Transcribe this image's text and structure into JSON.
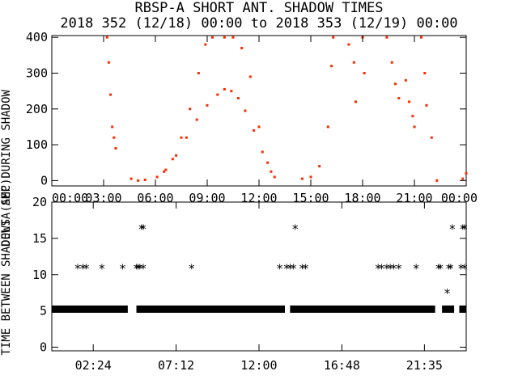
{
  "chart_data": [
    {
      "type": "scatter",
      "title_line1": "RBSP-A SHORT ANT. SHADOW TIMES",
      "title_line2": "2018 352 (12/18) 00:00 to 2018 353 (12/19) 00:00",
      "ylabel": "DELTA AMP DURING SHADOW",
      "xlim": [
        0,
        24
      ],
      "ylim": [
        -15,
        405
      ],
      "y_ticks": [
        "0",
        "100",
        "200",
        "300",
        "400"
      ],
      "y_tick_values": [
        0,
        100,
        200,
        300,
        400
      ],
      "x_ticks": [
        "00:00",
        "03:00",
        "06:00",
        "09:00",
        "12:00",
        "15:00",
        "18:00",
        "21:00",
        "00:00"
      ],
      "x_tick_values": [
        0,
        3,
        6,
        9,
        12,
        15,
        18,
        21,
        24
      ],
      "marker_color": "#ff2a00",
      "series": [
        {
          "points": [
            [
              3.2,
              400
            ],
            [
              3.3,
              330
            ],
            [
              3.4,
              240
            ],
            [
              3.5,
              150
            ],
            [
              3.6,
              120
            ],
            [
              3.7,
              90
            ],
            [
              4.6,
              5
            ],
            [
              5.0,
              0
            ],
            [
              5.4,
              2
            ],
            [
              6.1,
              10
            ],
            [
              6.5,
              25
            ],
            [
              7.0,
              60
            ],
            [
              7.5,
              120
            ],
            [
              8.0,
              200
            ],
            [
              8.5,
              300
            ],
            [
              8.9,
              380
            ],
            [
              9.3,
              400
            ],
            [
              10.0,
              400
            ],
            [
              10.5,
              400
            ],
            [
              11.0,
              370
            ],
            [
              11.5,
              290
            ],
            [
              12.0,
              150
            ],
            [
              12.5,
              50
            ],
            [
              12.9,
              10
            ],
            [
              6.6,
              30
            ],
            [
              7.2,
              70
            ],
            [
              7.8,
              120
            ],
            [
              8.4,
              170
            ],
            [
              9.0,
              210
            ],
            [
              9.6,
              240
            ],
            [
              10.0,
              255
            ],
            [
              10.4,
              250
            ],
            [
              10.8,
              230
            ],
            [
              11.2,
              195
            ],
            [
              11.7,
              140
            ],
            [
              12.2,
              80
            ],
            [
              12.7,
              25
            ],
            [
              14.5,
              5
            ],
            [
              15.0,
              10
            ],
            [
              15.5,
              40
            ],
            [
              16.0,
              150
            ],
            [
              16.2,
              320
            ],
            [
              16.3,
              400
            ],
            [
              17.2,
              380
            ],
            [
              17.5,
              330
            ],
            [
              17.6,
              220
            ],
            [
              18.0,
              400
            ],
            [
              18.1,
              300
            ],
            [
              19.4,
              400
            ],
            [
              19.7,
              330
            ],
            [
              19.9,
              270
            ],
            [
              20.1,
              230
            ],
            [
              20.5,
              280
            ],
            [
              20.7,
              220
            ],
            [
              20.9,
              180
            ],
            [
              21.0,
              150
            ],
            [
              21.4,
              400
            ],
            [
              21.6,
              300
            ],
            [
              21.7,
              210
            ],
            [
              22.0,
              120
            ],
            [
              22.3,
              0
            ],
            [
              23.8,
              5
            ],
            [
              24.0,
              20
            ]
          ]
        }
      ]
    },
    {
      "type": "scatter",
      "ylabel": "TIME BETWEEN SHADOWS (SEC)",
      "xlim": [
        0,
        24
      ],
      "ylim": [
        -0.5,
        20
      ],
      "y_ticks": [
        "0",
        "5",
        "10",
        "15",
        "20"
      ],
      "y_tick_values": [
        0,
        5,
        10,
        15,
        20
      ],
      "x_ticks": [
        "02:24",
        "07:12",
        "12:00",
        "16:48",
        "21:35"
      ],
      "x_tick_values": [
        2.4,
        7.2,
        12.0,
        16.8,
        21.58
      ],
      "marker": "*",
      "marker_color": "#000000",
      "points": [
        [
          1.5,
          10.9
        ],
        [
          1.8,
          10.9
        ],
        [
          2.0,
          10.9
        ],
        [
          2.9,
          10.9
        ],
        [
          4.1,
          10.9
        ],
        [
          4.9,
          10.9
        ],
        [
          5.0,
          10.9
        ],
        [
          5.1,
          10.9
        ],
        [
          5.3,
          10.9
        ],
        [
          5.2,
          16.4
        ],
        [
          5.3,
          16.4
        ],
        [
          8.1,
          10.9
        ],
        [
          13.2,
          10.9
        ],
        [
          13.6,
          10.9
        ],
        [
          13.8,
          10.9
        ],
        [
          14.0,
          10.9
        ],
        [
          14.1,
          16.4
        ],
        [
          14.5,
          10.9
        ],
        [
          14.7,
          10.9
        ],
        [
          18.9,
          10.9
        ],
        [
          19.1,
          10.9
        ],
        [
          19.4,
          10.9
        ],
        [
          19.6,
          10.9
        ],
        [
          19.8,
          10.9
        ],
        [
          20.1,
          10.9
        ],
        [
          21.1,
          10.9
        ],
        [
          22.4,
          10.9
        ],
        [
          22.5,
          10.9
        ],
        [
          22.9,
          7.5
        ],
        [
          23.0,
          10.9
        ],
        [
          23.1,
          10.9
        ],
        [
          23.2,
          16.4
        ],
        [
          23.7,
          10.9
        ],
        [
          23.9,
          10.9
        ],
        [
          23.8,
          16.4
        ],
        [
          23.9,
          16.4
        ]
      ],
      "baseline_segments": [
        {
          "y": 5.3,
          "x_from": 0.0,
          "x_to": 4.4
        },
        {
          "y": 5.3,
          "x_from": 4.9,
          "x_to": 13.5
        },
        {
          "y": 5.3,
          "x_from": 13.8,
          "x_to": 22.2
        },
        {
          "y": 5.3,
          "x_from": 22.6,
          "x_to": 23.3
        },
        {
          "y": 5.3,
          "x_from": 23.6,
          "x_to": 24.0
        }
      ]
    }
  ]
}
